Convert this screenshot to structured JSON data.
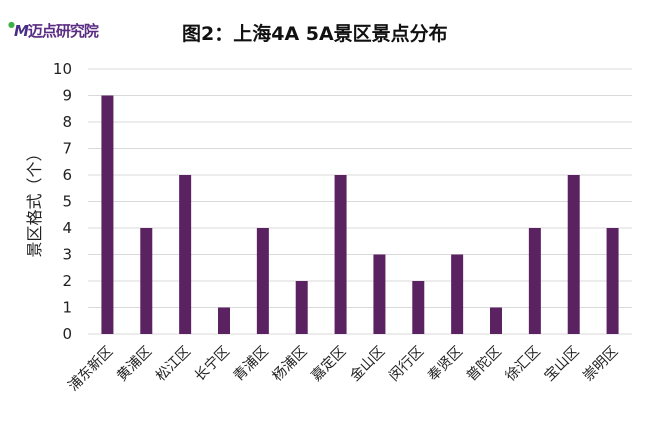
{
  "logo_text": "迈点研究院",
  "chart_data": {
    "type": "bar",
    "title": "图2：上海4A 5A景区景点分布",
    "xlabel": "",
    "ylabel": "景区格式（个）",
    "categories": [
      "浦东新区",
      "黄浦区",
      "松江区",
      "长宁区",
      "青浦区",
      "杨浦区",
      "嘉定区",
      "金山区",
      "闵行区",
      "奉贤区",
      "普陀区",
      "徐汇区",
      "宝山区",
      "崇明区"
    ],
    "values": [
      9,
      4,
      6,
      1,
      4,
      2,
      6,
      3,
      2,
      3,
      1,
      4,
      6,
      4
    ],
    "ylim": [
      0,
      10
    ],
    "yticks": [
      0,
      1,
      2,
      3,
      4,
      5,
      6,
      7,
      8,
      9,
      10
    ],
    "grid": true,
    "bar_color": "#5a2261"
  }
}
